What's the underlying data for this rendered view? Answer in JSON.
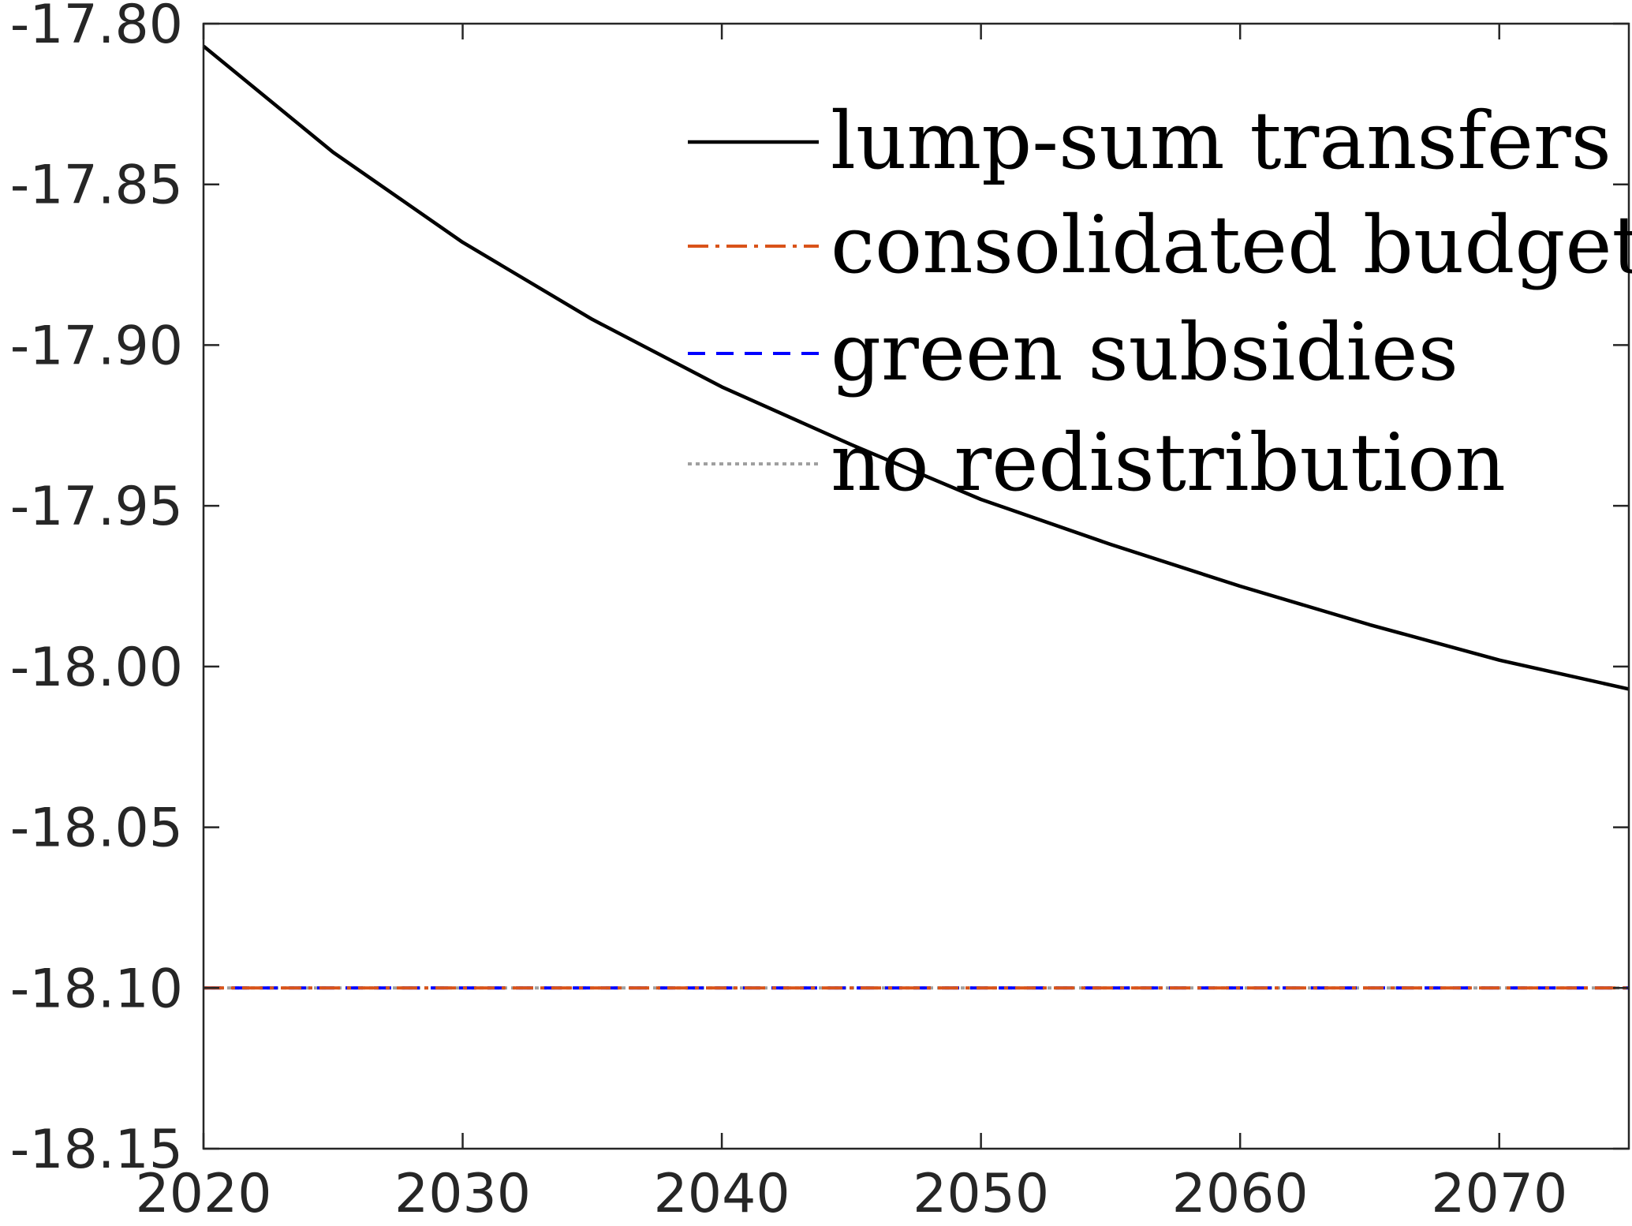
{
  "chart_data": {
    "type": "line",
    "title": "",
    "xlabel": "",
    "ylabel": "",
    "xlim": [
      2020,
      2075
    ],
    "ylim": [
      -18.15,
      -17.8
    ],
    "xticks": [
      2020,
      2030,
      2040,
      2050,
      2060,
      2070
    ],
    "xtick_labels": [
      "2020",
      "2030",
      "2040",
      "2050",
      "2060",
      "2070"
    ],
    "yticks": [
      -17.8,
      -17.85,
      -17.9,
      -17.95,
      -18.0,
      -18.05,
      -18.1,
      -18.15
    ],
    "ytick_labels": [
      "-17.80",
      "-17.85",
      "-17.90",
      "-17.95",
      "-18.00",
      "-18.05",
      "-18.10",
      "-18.15"
    ],
    "grid": false,
    "legend_position": "top-right",
    "series": [
      {
        "name": "lump-sum transfers",
        "color": "#000000",
        "style": "solid",
        "x": [
          2020,
          2025,
          2030,
          2035,
          2040,
          2045,
          2050,
          2055,
          2060,
          2065,
          2070,
          2075
        ],
        "y": [
          -17.807,
          -17.84,
          -17.868,
          -17.892,
          -17.913,
          -17.931,
          -17.948,
          -17.962,
          -17.975,
          -17.987,
          -17.998,
          -18.007
        ]
      },
      {
        "name": "consolidated budget",
        "color": "#D95319",
        "style": "dashdot",
        "x": [
          2020,
          2075
        ],
        "y": [
          -18.1,
          -18.1
        ]
      },
      {
        "name": "green subsidies",
        "color": "#0000FF",
        "style": "dashed",
        "x": [
          2020,
          2075
        ],
        "y": [
          -18.1,
          -18.1
        ]
      },
      {
        "name": "no redistribution",
        "color": "#A0A0A0",
        "style": "dotted",
        "x": [
          2020,
          2075
        ],
        "y": [
          -18.1,
          -18.1
        ]
      }
    ]
  }
}
